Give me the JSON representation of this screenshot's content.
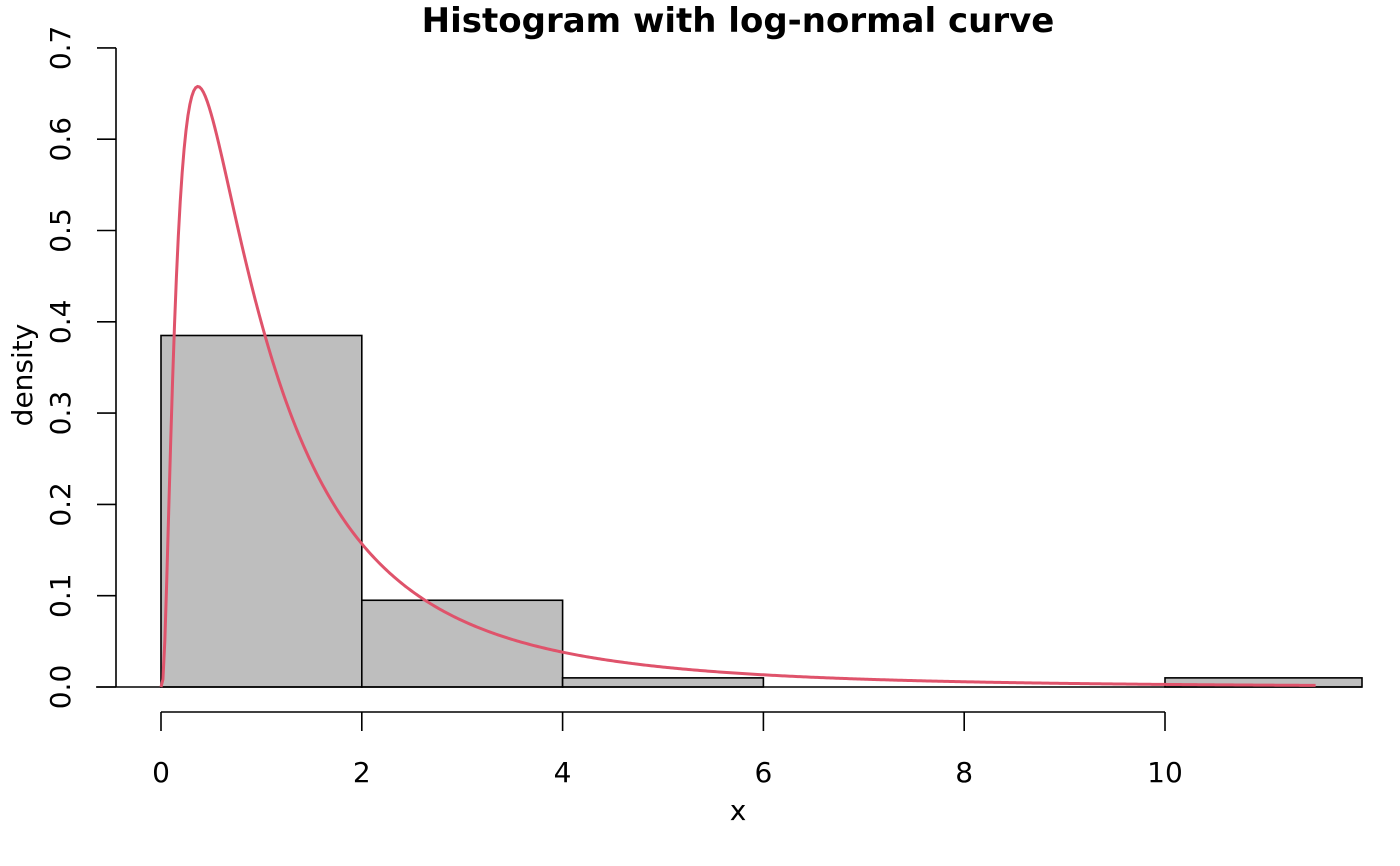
{
  "chart_data": {
    "type": "bar",
    "title": "Histogram with log-normal curve",
    "xlabel": "x",
    "ylabel": "density",
    "xlim": [
      0,
      11.8
    ],
    "ylim": [
      0,
      0.7
    ],
    "x_ticks": [
      0,
      2,
      4,
      6,
      8,
      10
    ],
    "y_ticks": [
      0.0,
      0.1,
      0.2,
      0.3,
      0.4,
      0.5,
      0.6,
      0.7
    ],
    "x_tick_labels": [
      "0",
      "2",
      "4",
      "6",
      "8",
      "10"
    ],
    "y_tick_labels": [
      "0.0",
      "0.1",
      "0.2",
      "0.3",
      "0.4",
      "0.5",
      "0.6",
      "0.7"
    ],
    "bins": [
      {
        "from": 0,
        "to": 2,
        "density": 0.385
      },
      {
        "from": 2,
        "to": 4,
        "density": 0.095
      },
      {
        "from": 4,
        "to": 6,
        "density": 0.01
      },
      {
        "from": 6,
        "to": 8,
        "density": 0.0
      },
      {
        "from": 8,
        "to": 10,
        "density": 0.0
      },
      {
        "from": 10,
        "to": 12,
        "density": 0.01
      }
    ],
    "curve": {
      "type": "line",
      "distribution": "log-normal",
      "meanlog": 0.0,
      "sdlog": 1.0,
      "x_range": [
        0,
        11.5
      ]
    },
    "grid": false,
    "legend": "none",
    "colors": {
      "bar_fill": "#bebebe",
      "bar_stroke": "#000000",
      "curve": "#df536b",
      "axis": "#000000"
    }
  }
}
